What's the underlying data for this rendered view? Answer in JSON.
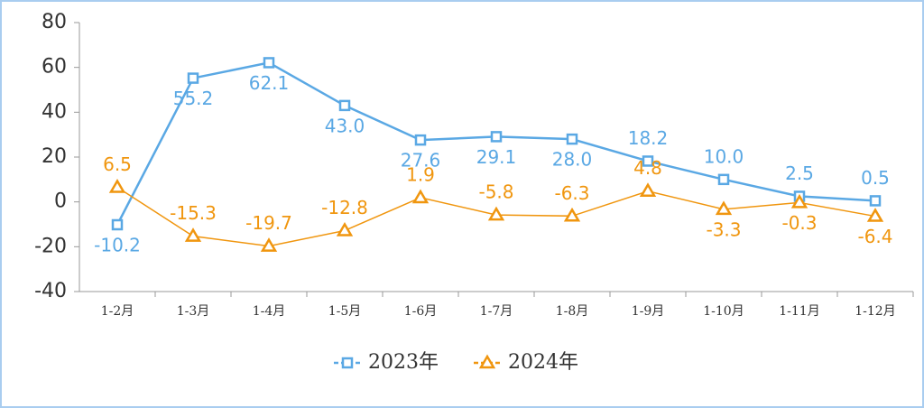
{
  "chart_data": {
    "type": "line",
    "categories": [
      "1-2月",
      "1-3月",
      "1-4月",
      "1-5月",
      "1-6月",
      "1-7月",
      "1-8月",
      "1-9月",
      "1-10月",
      "1-11月",
      "1-12月"
    ],
    "series": [
      {
        "name": "2023年",
        "color": "#5aa8e4",
        "marker": "square",
        "values": [
          -10.2,
          55.2,
          62.1,
          43.0,
          27.6,
          29.1,
          28.0,
          18.2,
          10.0,
          2.5,
          0.5
        ],
        "value_labels": [
          "-10.2",
          "55.2",
          "62.1",
          "43.0",
          "27.6",
          "29.1",
          "28.0",
          "18.2",
          "10.0",
          "2.5",
          "0.5"
        ]
      },
      {
        "name": "2024年",
        "color": "#f0960f",
        "marker": "triangle",
        "values": [
          6.5,
          -15.3,
          -19.7,
          -12.8,
          1.9,
          -5.8,
          -6.3,
          4.8,
          -3.3,
          -0.3,
          -6.4
        ]
      }
    ],
    "ylim": [
      -40,
      80
    ],
    "yticks": [
      -40,
      -20,
      0,
      20,
      40,
      60,
      80
    ],
    "grid": false,
    "legend": "bottom"
  }
}
